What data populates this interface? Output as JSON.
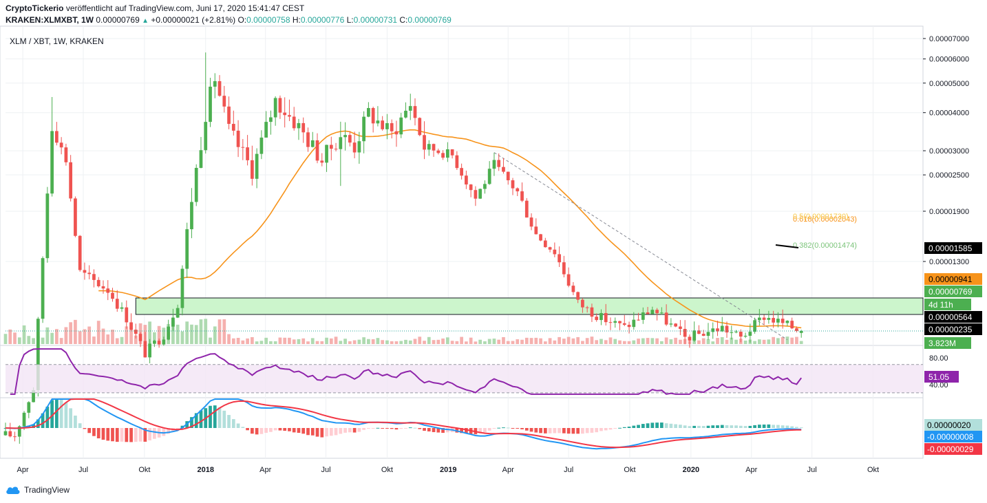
{
  "header": {
    "publisher": "CryptoTickerio",
    "published_text": "veröffentlicht auf TradingView.com, Juni 17, 2020 15:41:47 CEST",
    "symbol_full": "KRAKEN:XLMXBT, 1W",
    "last": "0.00000769",
    "change": "+0.00000021 (+2.81%)",
    "o_label": "O:",
    "o": "0.00000758",
    "h_label": "H:",
    "h": "0.00000776",
    "l_label": "L:",
    "l": "0.00000731",
    "c_label": "C:",
    "c": "0.00000769"
  },
  "legend": "XLM / XBT, 1W, KRAKEN",
  "footer": {
    "brand": "TradingView"
  },
  "colors": {
    "up": "#26a69a",
    "down": "#ef5350",
    "candle_up": "#4caf50",
    "candle_down": "#ef5350",
    "ma": "#f7931a",
    "rsi": "#8e24aa",
    "macd": "#2196f3",
    "signal": "#f23645",
    "zone_fill": "#ccf5cc",
    "grid": "#eef0f3"
  },
  "chart_data": {
    "type": "candlestick",
    "scale": "log",
    "x_ticks": [
      "Apr",
      "Jul",
      "Okt",
      "2018",
      "Apr",
      "Jul",
      "Okt",
      "2019",
      "Apr",
      "Jul",
      "Okt",
      "2020",
      "Apr",
      "Jul",
      "Okt"
    ],
    "y_ticks": [
      "0.00007000",
      "0.00006000",
      "0.00005000",
      "0.00004000",
      "0.00003000",
      "0.00002500",
      "0.00001900",
      "0.00001300"
    ],
    "price_labels": [
      {
        "text": "0.00001585",
        "style": "black"
      },
      {
        "text": "0.00000941",
        "style": "orange"
      },
      {
        "text": "0.00000769",
        "style": "green"
      },
      {
        "text": "4d 11h",
        "style": "green"
      },
      {
        "text": "0.00000564",
        "style": "black"
      },
      {
        "text": "0.00000235",
        "style": "black"
      },
      {
        "text": "3.823M",
        "style": "green"
      }
    ],
    "fib_labels": [
      {
        "text": "0.618(0.00002043)",
        "color": "#f7931a"
      },
      {
        "text": "0.382(0.00001474)",
        "color": "#7cc47a"
      },
      {
        "text": "0.5(0.00001730)",
        "color": "#f7c948"
      }
    ],
    "rsi": {
      "ticks": [
        "80.00",
        "40.00"
      ],
      "last": "51.05",
      "upper": 70,
      "lower": 30
    },
    "macd": {
      "last_hist": "0.00000020",
      "last_macd": "-0.00000008",
      "last_signal": "-0.00000029"
    },
    "anchors": [
      [
        "2017-03-20",
        3.5e-06
      ],
      [
        "2017-04-17",
        5e-06
      ],
      [
        "2017-05-15",
        3.6e-05
      ],
      [
        "2017-06-05",
        2.8e-05
      ],
      [
        "2017-06-26",
        1.2e-05
      ],
      [
        "2017-08-07",
        1.05e-05
      ],
      [
        "2017-09-04",
        8.5e-06
      ],
      [
        "2017-10-02",
        6.5e-06
      ],
      [
        "2017-10-30",
        7.5e-06
      ],
      [
        "2017-11-20",
        9.5e-06
      ],
      [
        "2017-12-11",
        2.1e-05
      ],
      [
        "2018-01-01",
        4e-05
      ],
      [
        "2018-01-15",
        5.2e-05
      ],
      [
        "2018-02-05",
        3.5e-05
      ],
      [
        "2018-03-12",
        2.6e-05
      ],
      [
        "2018-04-16",
        4.4e-05
      ],
      [
        "2018-05-21",
        3.6e-05
      ],
      [
        "2018-06-25",
        2.8e-05
      ],
      [
        "2018-07-23",
        3.4e-05
      ],
      [
        "2018-08-13",
        3.1e-05
      ],
      [
        "2018-09-03",
        4e-05
      ],
      [
        "2018-10-08",
        3.4e-05
      ],
      [
        "2018-11-05",
        4.3e-05
      ],
      [
        "2018-11-26",
        3.1e-05
      ],
      [
        "2019-01-07",
        2.9e-05
      ],
      [
        "2019-02-11",
        2.1e-05
      ],
      [
        "2019-03-11",
        2.7e-05
      ],
      [
        "2019-04-15",
        2.2e-05
      ],
      [
        "2019-05-13",
        1.6e-05
      ],
      [
        "2019-06-10",
        1.4e-05
      ],
      [
        "2019-07-15",
        9.5e-06
      ],
      [
        "2019-08-19",
        8.5e-06
      ],
      [
        "2019-09-23",
        7.9e-06
      ],
      [
        "2019-11-04",
        9.1e-06
      ],
      [
        "2019-12-23",
        7.3e-06
      ],
      [
        "2020-02-17",
        7.9e-06
      ],
      [
        "2020-03-16",
        7.3e-06
      ],
      [
        "2020-04-20",
        8.6e-06
      ],
      [
        "2020-06-15",
        7.7e-06
      ]
    ]
  }
}
